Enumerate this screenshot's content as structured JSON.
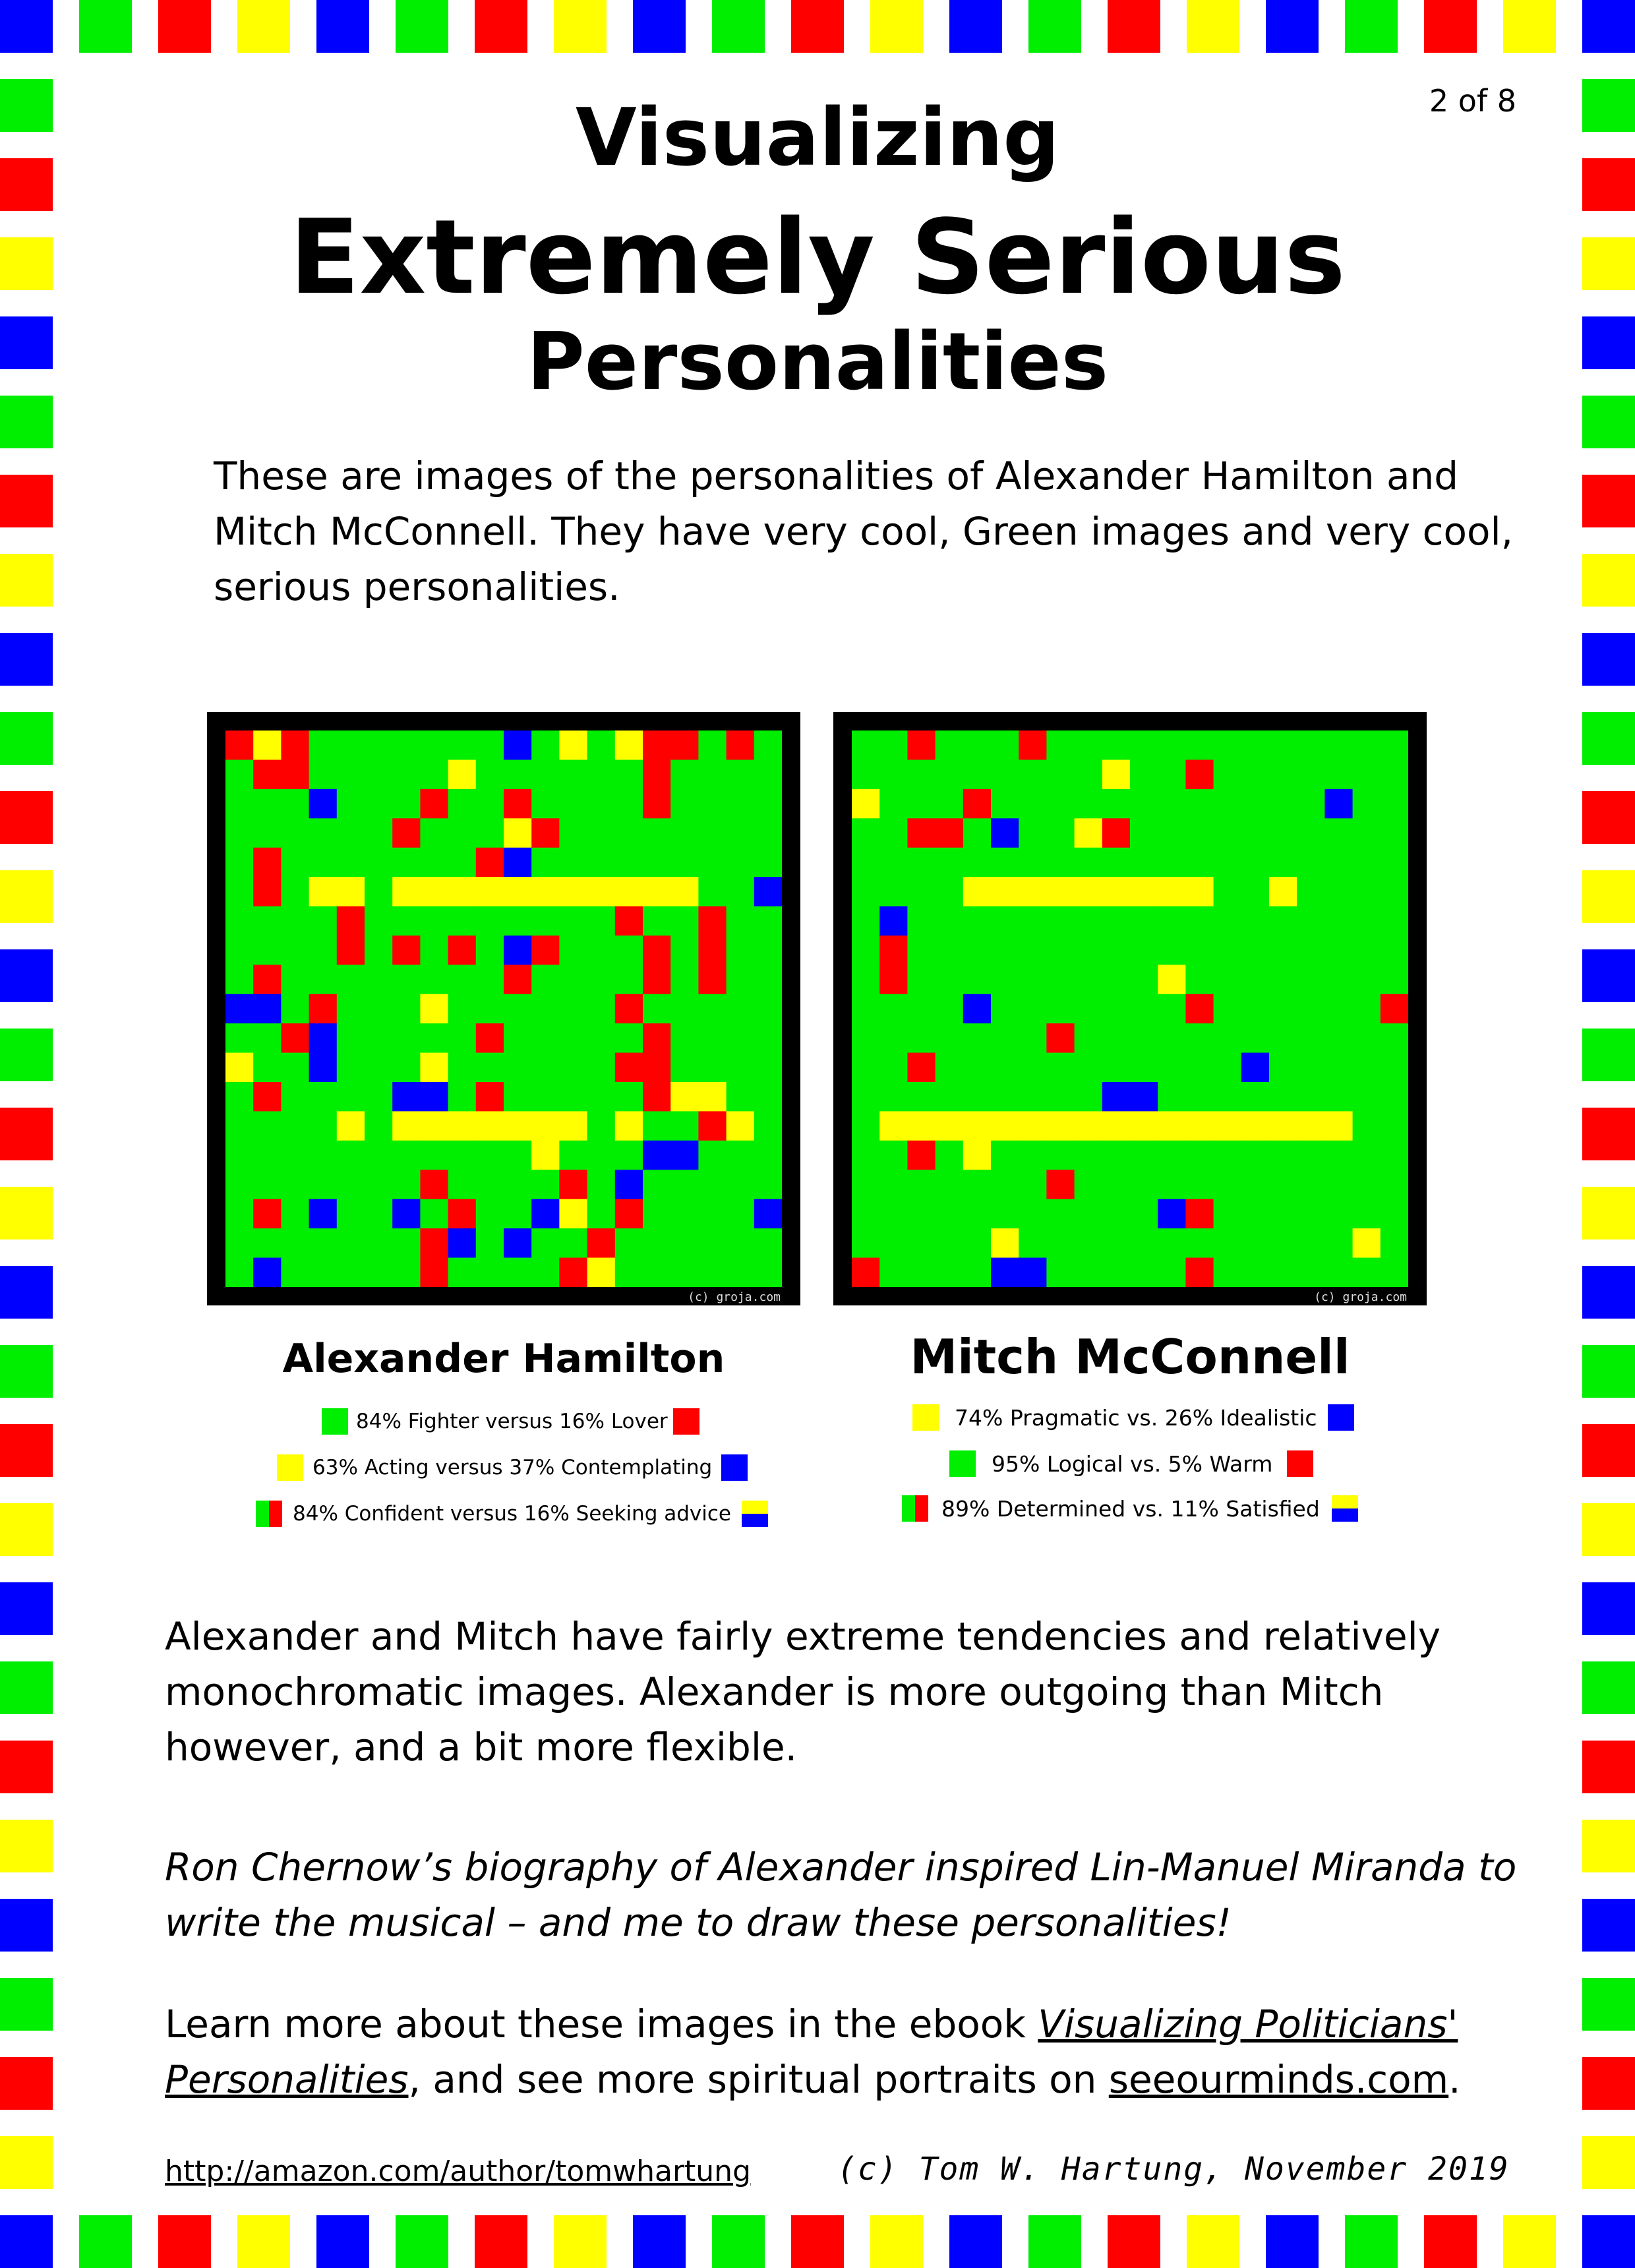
{
  "page_number": "2 of 8",
  "title": {
    "line1": "Visualizing",
    "line2": "Extremely Serious",
    "line3": "Personalities"
  },
  "intro": "These are images of the personalities of Alexander Hamilton and Mitch McConnell.  They have very cool, Green images and very cool, serious personalities.",
  "colors": {
    "green": "#00ee00",
    "red": "#ff0000",
    "yellow": "#ffff00",
    "blue": "#0000ff",
    "frame": "#000000"
  },
  "grid_watermark": "(c) groja.com",
  "people": [
    {
      "name": "Alexander Hamilton",
      "traits": [
        {
          "text": "84% Fighter versus 16% Lover",
          "left_icon": "green-square-icon",
          "right_icon": "red-square-icon"
        },
        {
          "text": "63% Acting versus 37% Contemplating",
          "left_icon": "yellow-square-icon",
          "right_icon": "blue-square-icon"
        },
        {
          "text": "84% Confident versus 16% Seeking advice",
          "left_icon": "green-red-split-icon",
          "right_icon": "yellow-blue-split-icon"
        }
      ],
      "grid_rows": [
        "RYRGGGGGGGBGYGYRRGRG",
        "GRRGGGGGYGGGGGGRGGGG",
        "GGGBGGGRGGRGGGGRGGGG",
        "GGGGGGRGGGYRGGGGGGGG",
        "GRGGGGGGGRBGGGGGGGGG",
        "GRGYYGYYYYYYYYYYYGGB",
        "GGGGRGGGGGGGGGRGGRGG",
        "GGGGRGRGRGBRGGGRGRGG",
        "GRGGGGGGGGRGGGGRGRGG",
        "BBGRGGGYGGGGGGRGGGGG",
        "GGRBGGGGGRGGGGGRGGGG",
        "YGGBGGGYGGGGGGRRGGGG",
        "GRGGGGBBGRGGGGGRYYGG",
        "GGGGYGYYYYYYYGYGGRYG",
        "GGGGGGGGGGGYGGGBBGGG",
        "GGGGGGGRGGGGRGBGGGGG",
        "GRGBGGBGRGGBYGRGGGGB",
        "GGGGGGGRBGBGGRGGGGGG",
        "GBGGGGGRGGGGRYGGGGGG"
      ]
    },
    {
      "name": "Mitch McConnell",
      "traits": [
        {
          "text": "74% Pragmatic vs. 26% Idealistic",
          "left_icon": "yellow-square-icon",
          "right_icon": "blue-square-icon"
        },
        {
          "text": "95% Logical vs. 5% Warm",
          "left_icon": "green-square-icon",
          "right_icon": "red-square-icon"
        },
        {
          "text": "89% Determined vs. 11% Satisfied",
          "left_icon": "green-red-split-icon",
          "right_icon": "yellow-blue-split-icon"
        }
      ],
      "grid_rows": [
        "GGRGGGRGGGGGGGGGGGGG",
        "GGGGGGGGGYGGRGGGGGGG",
        "YGGGRGGGGGGGGGGGGBGG",
        "GGRRGBGGYRGGGGGGGGGG",
        "GGGGGGGGGGGGGGGGGGGG",
        "GGGGYYYYYYYYYGGYGGGG",
        "GBGGGGGGGGGGGGGGGGGG",
        "GRGGGGGGGGGGGGGGGGGG",
        "GRGGGGGGGGGYGGGGGGGG",
        "GGGGBGGGGGGGRGGGGGGR",
        "GGGGGGGRGGGGGGGGGGGG",
        "GGRGGGGGGGGGGGBGGGGG",
        "GGGGGGGGGBBGGGGGGGGG",
        "GYYYYYYYYYYYYYYYYYGG",
        "GGRGYGGGGGGGGGGGGGGG",
        "GGGGGGGRGGGGGGGGGGGG",
        "GGGGGGGGGGGBRGGGGGGG",
        "GGGGGYGGGGGGGGGGGGYG",
        "RGGGGBBGGGGGRGGGGGGG"
      ]
    }
  ],
  "paragraph2": "Alexander and Mitch have fairly extreme tendencies and relatively monochromatic images.  Alexander is more outgoing than Mitch however, and a bit more flexible.",
  "paragraph3": "Ron Chernow’s biography of Alexander inspired Lin-Manuel Miranda to write the musical – and me to draw these personalities!",
  "paragraph4": {
    "before": "Learn more about these images in the ebook ",
    "book_title": "Visualizing Politicians' Personalities",
    "middle": ", and see more spiritual portraits on ",
    "site": "seeourminds.com",
    "after": "."
  },
  "footer": {
    "url": "http://amazon.com/author/tomwhartung",
    "copyright": "(c) Tom W. Hartung, November 2019"
  }
}
